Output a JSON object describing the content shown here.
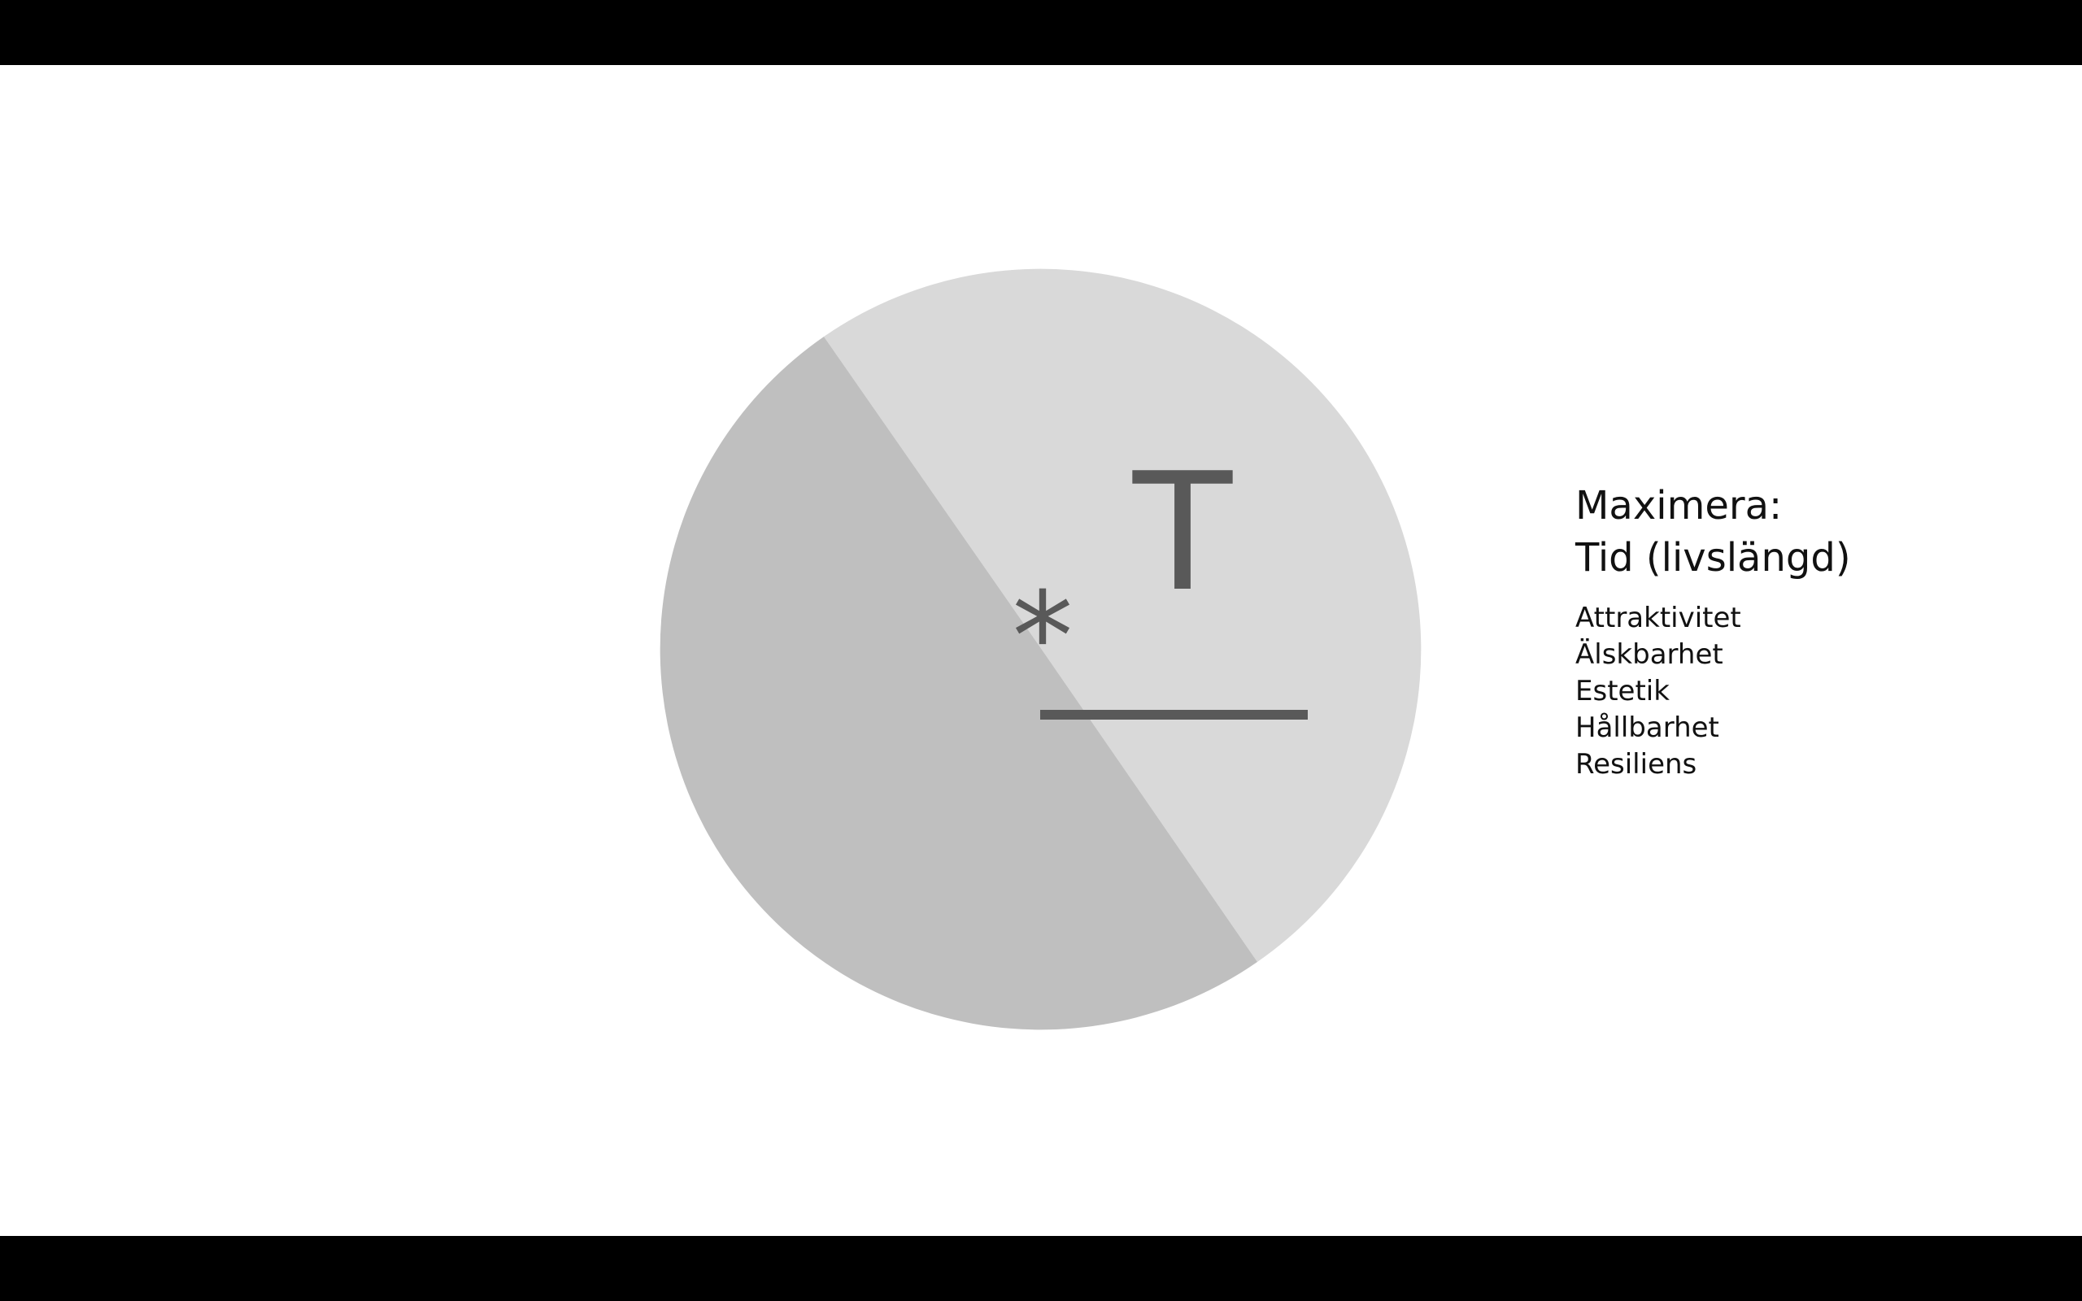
{
  "slide": {
    "pie": {
      "colors": {
        "light": "#d9d9d9",
        "dark": "#bfbfbf",
        "mark": "#595959"
      },
      "formula": {
        "asterisk": "*",
        "numerator": "T"
      }
    },
    "heading_line1": "Maximera:",
    "heading_line2": "Tid (livslängd)",
    "items": [
      "Attraktivitet",
      "Älskbarhet",
      "Estetik",
      "Hållbarhet",
      "Resiliens"
    ]
  },
  "toolbar": {
    "buttons": [
      {
        "name": "previous-slide-button",
        "icon": "arrow-left-icon"
      },
      {
        "name": "next-slide-button",
        "icon": "arrow-right-icon"
      },
      {
        "name": "pen-tool-button",
        "icon": "pen-icon"
      },
      {
        "name": "see-all-slides-button",
        "icon": "slides-grid-icon"
      },
      {
        "name": "zoom-button",
        "icon": "magnifier-icon"
      },
      {
        "name": "subtitles-button",
        "icon": "subtitles-icon"
      },
      {
        "name": "camera-button",
        "icon": "video-camera-icon"
      },
      {
        "name": "more-options-button",
        "icon": "ellipsis-icon"
      }
    ]
  }
}
